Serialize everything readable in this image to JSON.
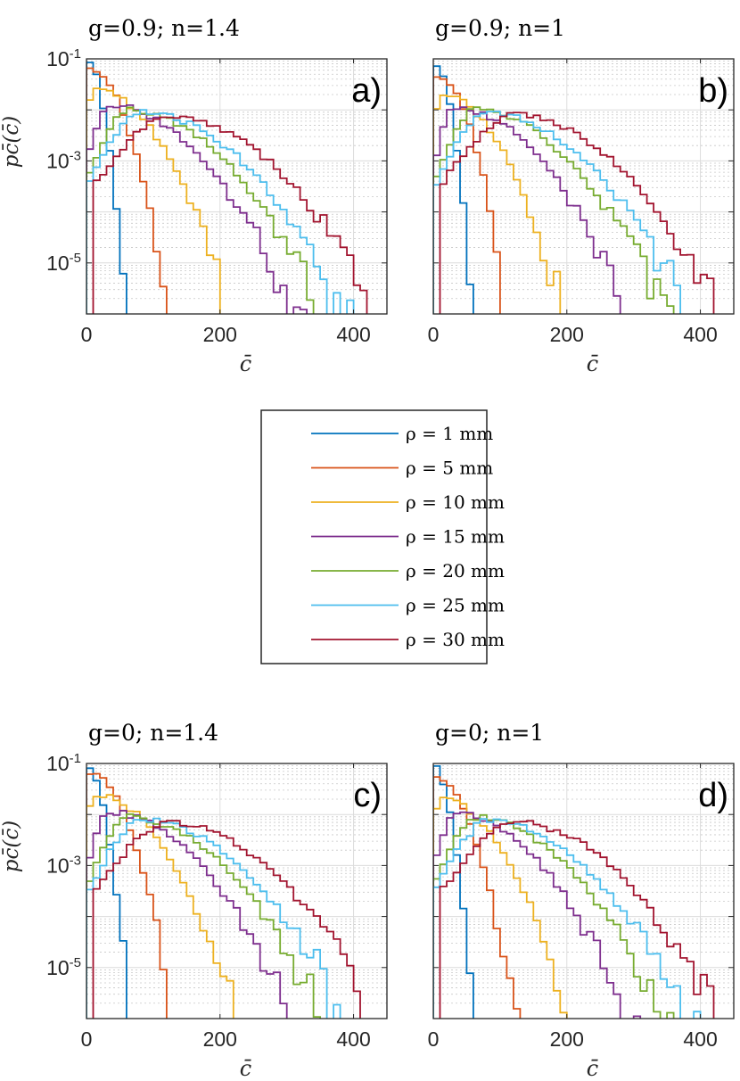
{
  "figure": {
    "legend": {
      "entries": [
        {
          "label": "ρ = 1 mm",
          "color": "#0072BD"
        },
        {
          "label": "ρ = 5 mm",
          "color": "#D95319"
        },
        {
          "label": "ρ = 10 mm",
          "color": "#EDB120"
        },
        {
          "label": "ρ = 15 mm",
          "color": "#7E2F8E"
        },
        {
          "label": "ρ = 20 mm",
          "color": "#77AC30"
        },
        {
          "label": "ρ = 25 mm",
          "color": "#4DBEEE"
        },
        {
          "label": "ρ = 30 mm",
          "color": "#A2142F"
        }
      ]
    }
  },
  "chart_data": [
    {
      "type": "line",
      "id": "a",
      "title": "g=0.9; n=1.4",
      "panel_label": "a)",
      "xlabel": "c̄",
      "ylabel": "pc̄(c̄)",
      "xlim": [
        0,
        450
      ],
      "ylim_log10": [
        -6,
        -1
      ],
      "xticks": [
        0,
        200,
        400
      ],
      "xtick_labels": [
        "0",
        "200",
        "400"
      ],
      "ytick_labels": [
        {
          "base": "10",
          "exp": "-1",
          "value": -1
        },
        {
          "base": "10",
          "exp": "-3",
          "value": -3
        },
        {
          "base": "10",
          "exp": "-5",
          "value": -5
        }
      ],
      "grid": true,
      "series": [
        {
          "name": "ρ = 1 mm",
          "log10_peak": -1.05,
          "center": 0,
          "width": 30,
          "start": 0,
          "xmax": 250,
          "floor": -6.0
        },
        {
          "name": "ρ = 5 mm",
          "log10_peak": -1.2,
          "center": 5,
          "width": 60,
          "start": 0,
          "xmax": 390,
          "floor": -6.0
        },
        {
          "name": "ρ = 10 mm",
          "log10_peak": -1.6,
          "center": 10,
          "width": 110,
          "start": 0,
          "xmax": 440,
          "floor": -6.0
        },
        {
          "name": "ρ = 15 mm",
          "log10_peak": -1.9,
          "center": 30,
          "width": 155,
          "start": 0,
          "xmax": 440,
          "floor": -6.0
        },
        {
          "name": "ρ = 20 mm",
          "log10_peak": -2.0,
          "center": 60,
          "width": 165,
          "start": 0,
          "xmax": 440,
          "floor": -6.0
        },
        {
          "name": "ρ = 25 mm",
          "log10_peak": -2.05,
          "center": 80,
          "width": 175,
          "start": 0,
          "xmax": 440,
          "floor": -6.0
        },
        {
          "name": "ρ = 30 mm",
          "log10_peak": -2.1,
          "center": 120,
          "width": 180,
          "start": 10,
          "xmax": 440,
          "floor": -6.0
        }
      ]
    },
    {
      "type": "line",
      "id": "b",
      "title": "g=0.9; n=1",
      "panel_label": "b)",
      "xlabel": "c̄",
      "ylabel": "",
      "xlim": [
        0,
        450
      ],
      "ylim_log10": [
        -6,
        -1
      ],
      "xticks": [
        0,
        200,
        400
      ],
      "xtick_labels": [
        "0",
        "200",
        "400"
      ],
      "ytick_labels": [],
      "grid": true,
      "series": [
        {
          "name": "ρ = 1 mm",
          "log10_peak": -1.05,
          "center": 0,
          "width": 30,
          "start": 0,
          "xmax": 240,
          "floor": -6.0
        },
        {
          "name": "ρ = 5 mm",
          "log10_peak": -1.3,
          "center": 5,
          "width": 55,
          "start": 0,
          "xmax": 390,
          "floor": -6.0
        },
        {
          "name": "ρ = 10 mm",
          "log10_peak": -1.7,
          "center": 10,
          "width": 100,
          "start": 0,
          "xmax": 440,
          "floor": -6.0
        },
        {
          "name": "ρ = 15 mm",
          "log10_peak": -1.95,
          "center": 30,
          "width": 145,
          "start": 0,
          "xmax": 440,
          "floor": -6.0
        },
        {
          "name": "ρ = 20 mm",
          "log10_peak": -2.0,
          "center": 60,
          "width": 160,
          "start": 0,
          "xmax": 440,
          "floor": -6.0
        },
        {
          "name": "ρ = 25 mm",
          "log10_peak": -2.05,
          "center": 80,
          "width": 170,
          "start": 0,
          "xmax": 440,
          "floor": -6.0
        },
        {
          "name": "ρ = 30 mm",
          "log10_peak": -2.1,
          "center": 120,
          "width": 175,
          "start": 10,
          "xmax": 440,
          "floor": -6.0
        }
      ]
    },
    {
      "type": "line",
      "id": "c",
      "title": "g=0; n=1.4",
      "panel_label": "c)",
      "xlabel": "c̄",
      "ylabel": "pc̄(c̄)",
      "xlim": [
        0,
        450
      ],
      "ylim_log10": [
        -6,
        -1
      ],
      "xticks": [
        0,
        200,
        400
      ],
      "xtick_labels": [
        "0",
        "200",
        "400"
      ],
      "ytick_labels": [
        {
          "base": "10",
          "exp": "-1",
          "value": -1
        },
        {
          "base": "10",
          "exp": "-3",
          "value": -3
        },
        {
          "base": "10",
          "exp": "-5",
          "value": -5
        }
      ],
      "grid": true,
      "series": [
        {
          "name": "ρ = 1 mm",
          "log10_peak": -1.05,
          "center": 0,
          "width": 32,
          "start": 0,
          "xmax": 250,
          "floor": -6.0
        },
        {
          "name": "ρ = 5 mm",
          "log10_peak": -1.2,
          "center": 5,
          "width": 65,
          "start": 0,
          "xmax": 400,
          "floor": -6.0
        },
        {
          "name": "ρ = 10 mm",
          "log10_peak": -1.6,
          "center": 10,
          "width": 115,
          "start": 0,
          "xmax": 440,
          "floor": -6.0
        },
        {
          "name": "ρ = 15 mm",
          "log10_peak": -1.95,
          "center": 30,
          "width": 155,
          "start": 0,
          "xmax": 440,
          "floor": -6.0
        },
        {
          "name": "ρ = 20 mm",
          "log10_peak": -2.05,
          "center": 60,
          "width": 165,
          "start": 0,
          "xmax": 440,
          "floor": -6.0
        },
        {
          "name": "ρ = 25 mm",
          "log10_peak": -2.1,
          "center": 80,
          "width": 175,
          "start": 0,
          "xmax": 440,
          "floor": -6.0
        },
        {
          "name": "ρ = 30 mm",
          "log10_peak": -2.15,
          "center": 120,
          "width": 180,
          "start": 10,
          "xmax": 440,
          "floor": -6.0
        }
      ]
    },
    {
      "type": "line",
      "id": "d",
      "title": "g=0; n=1",
      "panel_label": "d)",
      "xlabel": "c̄",
      "ylabel": "",
      "xlim": [
        0,
        450
      ],
      "ylim_log10": [
        -6,
        -1
      ],
      "xticks": [
        0,
        200,
        400
      ],
      "xtick_labels": [
        "0",
        "200",
        "400"
      ],
      "ytick_labels": [],
      "grid": true,
      "series": [
        {
          "name": "ρ = 1 mm",
          "log10_peak": -1.05,
          "center": 0,
          "width": 30,
          "start": 0,
          "xmax": 240,
          "floor": -6.0
        },
        {
          "name": "ρ = 5 mm",
          "log10_peak": -1.3,
          "center": 5,
          "width": 60,
          "start": 0,
          "xmax": 400,
          "floor": -6.0
        },
        {
          "name": "ρ = 10 mm",
          "log10_peak": -1.7,
          "center": 10,
          "width": 105,
          "start": 0,
          "xmax": 440,
          "floor": -6.0
        },
        {
          "name": "ρ = 15 mm",
          "log10_peak": -1.95,
          "center": 30,
          "width": 145,
          "start": 0,
          "xmax": 440,
          "floor": -6.0
        },
        {
          "name": "ρ = 20 mm",
          "log10_peak": -2.05,
          "center": 60,
          "width": 160,
          "start": 0,
          "xmax": 440,
          "floor": -6.0
        },
        {
          "name": "ρ = 25 mm",
          "log10_peak": -2.1,
          "center": 80,
          "width": 170,
          "start": 0,
          "xmax": 440,
          "floor": -6.0
        },
        {
          "name": "ρ = 30 mm",
          "log10_peak": -2.15,
          "center": 120,
          "width": 175,
          "start": 10,
          "xmax": 440,
          "floor": -6.0
        }
      ]
    }
  ]
}
